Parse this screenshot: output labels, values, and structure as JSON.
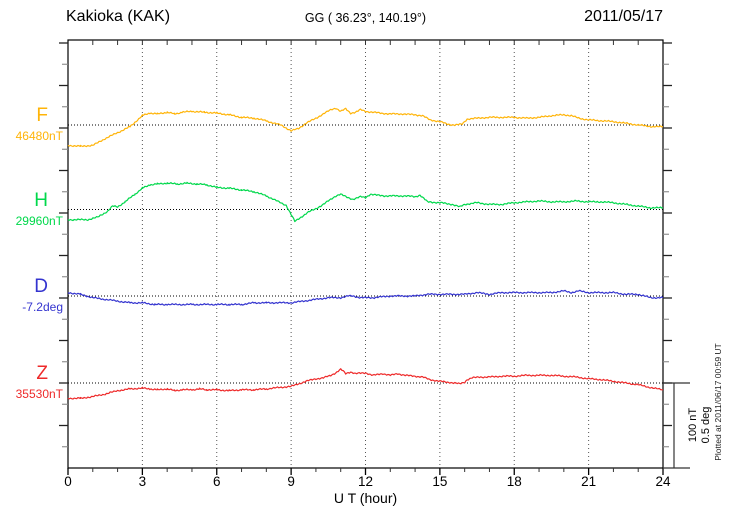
{
  "header": {
    "station": "Kakioka (KAK)",
    "coordinates": "GG ( 36.23°, 140.19°)",
    "date": "2011/05/17"
  },
  "footer": {
    "plotted_at": "Plotted at 2011/06/17 00:59 UT"
  },
  "scale_bar": {
    "labels": [
      "100 nT",
      "0.5 deg"
    ]
  },
  "chart_data": {
    "type": "line",
    "title": "Kakioka (KAK) magnetogram",
    "x_label": "U T (hour)",
    "x_range": [
      0,
      24
    ],
    "x_ticks": [
      0,
      3,
      6,
      9,
      12,
      15,
      18,
      21,
      24
    ],
    "grid": "vertical dotted lines every 3 h; dotted horizontal baseline per component",
    "amplitude_scale": {
      "nT_per_division": 100,
      "deg_per_division": 0.5
    },
    "series": [
      {
        "name": "F",
        "unit": "nT",
        "base_value": 46480,
        "base_label": "46480nT",
        "color": "#ffb408",
        "points": [
          [
            0,
            46456
          ],
          [
            0.5,
            46455
          ],
          [
            1,
            46456
          ],
          [
            1.5,
            46464
          ],
          [
            2,
            46471
          ],
          [
            2.5,
            46478
          ],
          [
            3,
            46491
          ],
          [
            3.3,
            46494
          ],
          [
            3.6,
            46493
          ],
          [
            4,
            46495
          ],
          [
            4.3,
            46493
          ],
          [
            4.6,
            46495
          ],
          [
            5,
            46496
          ],
          [
            5.5,
            46495
          ],
          [
            6,
            46494
          ],
          [
            6.5,
            46492
          ],
          [
            7,
            46489
          ],
          [
            7.5,
            46488
          ],
          [
            8,
            46485
          ],
          [
            8.3,
            46482
          ],
          [
            8.6,
            46480
          ],
          [
            9,
            46473
          ],
          [
            9.3,
            46476
          ],
          [
            9.6,
            46482
          ],
          [
            10,
            46488
          ],
          [
            10.3,
            46493
          ],
          [
            10.6,
            46498
          ],
          [
            10.8,
            46500
          ],
          [
            11,
            46496
          ],
          [
            11.2,
            46499
          ],
          [
            11.4,
            46494
          ],
          [
            11.6,
            46495
          ],
          [
            11.8,
            46498
          ],
          [
            12,
            46496
          ],
          [
            12.3,
            46495
          ],
          [
            12.6,
            46494
          ],
          [
            13,
            46493
          ],
          [
            13.5,
            46493
          ],
          [
            14,
            46492
          ],
          [
            14.3,
            46491
          ],
          [
            14.6,
            46486
          ],
          [
            15,
            46484
          ],
          [
            15.3,
            46481
          ],
          [
            15.6,
            46480
          ],
          [
            15.9,
            46481
          ],
          [
            16.1,
            46487
          ],
          [
            16.5,
            46488
          ],
          [
            17,
            46489
          ],
          [
            17.5,
            46489
          ],
          [
            18,
            46489
          ],
          [
            18.5,
            46488
          ],
          [
            19,
            46489
          ],
          [
            19.5,
            46491
          ],
          [
            20,
            46492
          ],
          [
            20.3,
            46491
          ],
          [
            20.6,
            46488
          ],
          [
            21,
            46486
          ],
          [
            21.5,
            46485
          ],
          [
            22,
            46484
          ],
          [
            22.5,
            46482
          ],
          [
            23,
            46480
          ],
          [
            23.3,
            46479
          ],
          [
            23.6,
            46478
          ],
          [
            24,
            46478
          ]
        ]
      },
      {
        "name": "H",
        "unit": "nT",
        "base_value": 29960,
        "base_label": "29960nT",
        "color": "#00d84b",
        "points": [
          [
            0,
            29948
          ],
          [
            0.8,
            29948
          ],
          [
            1.2,
            29951
          ],
          [
            1.6,
            29958
          ],
          [
            1.8,
            29964
          ],
          [
            2,
            29963
          ],
          [
            2.3,
            29969
          ],
          [
            2.7,
            29978
          ],
          [
            3,
            29985
          ],
          [
            3.3,
            29989
          ],
          [
            3.6,
            29990
          ],
          [
            4,
            29991
          ],
          [
            4.4,
            29990
          ],
          [
            4.8,
            29991
          ],
          [
            5.2,
            29990
          ],
          [
            5.6,
            29989
          ],
          [
            6,
            29986
          ],
          [
            6.5,
            29985
          ],
          [
            7,
            29983
          ],
          [
            7.5,
            29981
          ],
          [
            8,
            29976
          ],
          [
            8.5,
            29969
          ],
          [
            8.8,
            29965
          ],
          [
            9,
            29954
          ],
          [
            9.15,
            29946
          ],
          [
            9.4,
            29951
          ],
          [
            9.7,
            29957
          ],
          [
            10,
            29961
          ],
          [
            10.3,
            29966
          ],
          [
            10.6,
            29972
          ],
          [
            10.8,
            29976
          ],
          [
            11,
            29978
          ],
          [
            11.2,
            29975
          ],
          [
            11.5,
            29972
          ],
          [
            11.8,
            29975
          ],
          [
            12,
            29974
          ],
          [
            12.2,
            29978
          ],
          [
            12.4,
            29977
          ],
          [
            12.8,
            29976
          ],
          [
            13.2,
            29976
          ],
          [
            13.6,
            29976
          ],
          [
            14,
            29975
          ],
          [
            14.2,
            29977
          ],
          [
            14.5,
            29969
          ],
          [
            15,
            29968
          ],
          [
            15.5,
            29966
          ],
          [
            15.8,
            29963
          ],
          [
            16,
            29966
          ],
          [
            16.5,
            29968
          ],
          [
            17,
            29966
          ],
          [
            17.5,
            29966
          ],
          [
            18,
            29968
          ],
          [
            18.5,
            29969
          ],
          [
            19,
            29970
          ],
          [
            19.5,
            29969
          ],
          [
            20,
            29969
          ],
          [
            20.5,
            29970
          ],
          [
            21,
            29969
          ],
          [
            21.5,
            29969
          ],
          [
            22,
            29968
          ],
          [
            22.5,
            29966
          ],
          [
            23,
            29964
          ],
          [
            23.5,
            29962
          ],
          [
            24,
            29962
          ]
        ]
      },
      {
        "name": "D",
        "unit": "deg",
        "base_value": -7.2,
        "base_label": "-7.2deg",
        "color": "#3434cf",
        "points": [
          [
            0,
            -7.18
          ],
          [
            0.5,
            -7.19
          ],
          [
            1,
            -7.21
          ],
          [
            1.5,
            -7.22
          ],
          [
            2,
            -7.23
          ],
          [
            2.5,
            -7.24
          ],
          [
            3,
            -7.24
          ],
          [
            3.5,
            -7.25
          ],
          [
            4,
            -7.25
          ],
          [
            5,
            -7.25
          ],
          [
            6,
            -7.25
          ],
          [
            6.5,
            -7.25
          ],
          [
            7,
            -7.25
          ],
          [
            7.5,
            -7.24
          ],
          [
            8,
            -7.24
          ],
          [
            8.5,
            -7.24
          ],
          [
            9,
            -7.24
          ],
          [
            9.5,
            -7.23
          ],
          [
            10,
            -7.22
          ],
          [
            10.5,
            -7.21
          ],
          [
            11,
            -7.21
          ],
          [
            11.3,
            -7.2
          ],
          [
            11.5,
            -7.2
          ],
          [
            11.8,
            -7.21
          ],
          [
            12,
            -7.21
          ],
          [
            12.3,
            -7.21
          ],
          [
            13,
            -7.2
          ],
          [
            13.5,
            -7.2
          ],
          [
            14,
            -7.2
          ],
          [
            14.5,
            -7.19
          ],
          [
            15,
            -7.19
          ],
          [
            15.5,
            -7.19
          ],
          [
            16,
            -7.19
          ],
          [
            16.5,
            -7.18
          ],
          [
            17,
            -7.19
          ],
          [
            17.5,
            -7.18
          ],
          [
            18,
            -7.18
          ],
          [
            18.5,
            -7.18
          ],
          [
            19,
            -7.18
          ],
          [
            19.5,
            -7.18
          ],
          [
            20,
            -7.17
          ],
          [
            20.3,
            -7.18
          ],
          [
            20.6,
            -7.17
          ],
          [
            21,
            -7.18
          ],
          [
            21.5,
            -7.18
          ],
          [
            22,
            -7.18
          ],
          [
            22.5,
            -7.19
          ],
          [
            23,
            -7.19
          ],
          [
            23.5,
            -7.21
          ],
          [
            24,
            -7.21
          ]
        ]
      },
      {
        "name": "Z",
        "unit": "nT",
        "base_value": 35530,
        "base_label": "35530nT",
        "color": "#ee2a2a",
        "points": [
          [
            0,
            35512
          ],
          [
            0.5,
            35512
          ],
          [
            1,
            35514
          ],
          [
            1.5,
            35517
          ],
          [
            2,
            35521
          ],
          [
            2.5,
            35523
          ],
          [
            3,
            35524
          ],
          [
            3.3,
            35523
          ],
          [
            3.6,
            35522
          ],
          [
            4,
            35523
          ],
          [
            4.3,
            35521
          ],
          [
            4.6,
            35522
          ],
          [
            5,
            35522
          ],
          [
            5.3,
            35523
          ],
          [
            5.6,
            35522
          ],
          [
            6,
            35522
          ],
          [
            6.5,
            35521
          ],
          [
            7,
            35522
          ],
          [
            7.5,
            35522
          ],
          [
            8,
            35523
          ],
          [
            8.3,
            35524
          ],
          [
            8.6,
            35525
          ],
          [
            9,
            35526
          ],
          [
            9.3,
            35529
          ],
          [
            9.6,
            35532
          ],
          [
            10,
            35535
          ],
          [
            10.3,
            35536
          ],
          [
            10.6,
            35539
          ],
          [
            10.8,
            35542
          ],
          [
            11,
            35546
          ],
          [
            11.1,
            35544
          ],
          [
            11.2,
            35541
          ],
          [
            11.4,
            35543
          ],
          [
            11.6,
            35541
          ],
          [
            12,
            35542
          ],
          [
            12.3,
            35539
          ],
          [
            12.7,
            35541
          ],
          [
            13,
            35539
          ],
          [
            13.3,
            35541
          ],
          [
            13.6,
            35539
          ],
          [
            14,
            35538
          ],
          [
            14.3,
            35537
          ],
          [
            14.6,
            35534
          ],
          [
            15,
            35532
          ],
          [
            15.3,
            35531
          ],
          [
            15.6,
            35530
          ],
          [
            15.8,
            35529
          ],
          [
            16,
            35531
          ],
          [
            16.1,
            35534
          ],
          [
            16.3,
            35536
          ],
          [
            16.6,
            35537
          ],
          [
            17,
            35537
          ],
          [
            17.5,
            35538
          ],
          [
            18,
            35538
          ],
          [
            18.5,
            35539
          ],
          [
            19,
            35539
          ],
          [
            19.5,
            35539
          ],
          [
            20,
            35538
          ],
          [
            20.5,
            35537
          ],
          [
            21,
            35535
          ],
          [
            21.5,
            35534
          ],
          [
            22,
            35532
          ],
          [
            22.5,
            35530
          ],
          [
            23,
            35528
          ],
          [
            23.3,
            35526
          ],
          [
            23.6,
            35524
          ],
          [
            24,
            35522
          ]
        ]
      }
    ]
  }
}
